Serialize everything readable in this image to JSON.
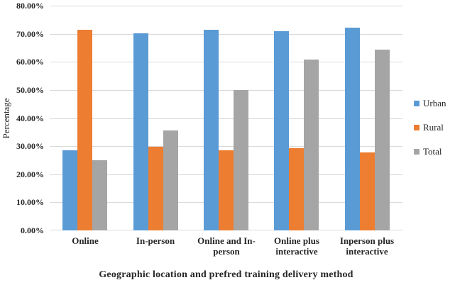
{
  "chart_data": {
    "type": "bar",
    "title": "",
    "xlabel": "Geographic location and prefred training delivery method",
    "ylabel": "Percentage",
    "categories": [
      "Online",
      "In-person",
      "Online and In-person",
      "Online plus interactive",
      "Inperson plus interactive"
    ],
    "series": [
      {
        "name": "Urban",
        "color": "#5B9BD5",
        "values": [
          28.6,
          70.2,
          71.4,
          70.8,
          72.2
        ]
      },
      {
        "name": "Rural",
        "color": "#ED7D31",
        "values": [
          71.4,
          29.8,
          28.6,
          29.2,
          27.8
        ]
      },
      {
        "name": "Total",
        "color": "#A5A5A5",
        "values": [
          25.0,
          35.6,
          50.0,
          60.8,
          64.4
        ]
      }
    ],
    "ylim": [
      0,
      80
    ],
    "yticks": [
      {
        "value": 0,
        "label": "0.00%"
      },
      {
        "value": 10,
        "label": "10.00%"
      },
      {
        "value": 20,
        "label": "20.00%"
      },
      {
        "value": 30,
        "label": "30.00%"
      },
      {
        "value": 40,
        "label": "40.00%"
      },
      {
        "value": 50,
        "label": "50.00%"
      },
      {
        "value": 60,
        "label": "60.00%"
      },
      {
        "value": 70,
        "label": "70.00%"
      },
      {
        "value": 80,
        "label": "80.00%"
      }
    ],
    "grid": true,
    "legend_position": "right"
  },
  "styles": {
    "gridline_color": "#d9d9d9",
    "axis_text_color": "#262626",
    "background": "#ffffff"
  }
}
